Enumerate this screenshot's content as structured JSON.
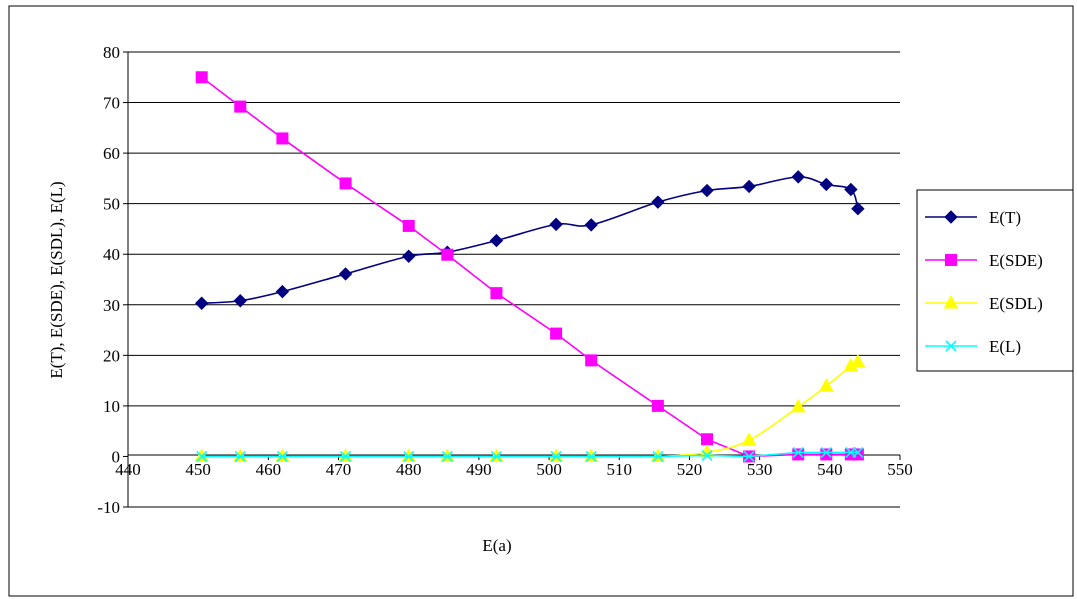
{
  "chart_data": {
    "type": "line",
    "title": "",
    "xlabel": "E(a)",
    "ylabel": "E(T), E(SDE), E(SDL), E(L)",
    "xlim": [
      440,
      550
    ],
    "ylim": [
      -10,
      80
    ],
    "xticks": [
      440,
      450,
      460,
      470,
      480,
      490,
      500,
      510,
      520,
      530,
      540,
      550
    ],
    "yticks": [
      -10,
      0,
      10,
      20,
      30,
      40,
      50,
      60,
      70,
      80
    ],
    "grid": "horizontal",
    "legend_position": "right",
    "series": [
      {
        "name": "E(T)",
        "color": "#000080",
        "marker": "diamond",
        "smooth": true,
        "x": [
          450.5,
          456,
          462,
          471,
          480,
          485.5,
          492.5,
          501,
          506,
          515.5,
          522.5,
          528.5,
          535.5,
          539.5,
          543,
          544
        ],
        "y": [
          30.3,
          30.8,
          32.6,
          36.1,
          39.6,
          40.4,
          42.7,
          45.9,
          45.8,
          50.3,
          52.6,
          53.4,
          55.3,
          53.8,
          52.8,
          49.0
        ]
      },
      {
        "name": "E(SDE)",
        "color": "#FF00FF",
        "marker": "square",
        "smooth": false,
        "x": [
          450.5,
          456,
          462,
          471,
          480,
          485.5,
          492.5,
          501,
          506,
          515.5,
          522.5,
          528.5,
          535.5,
          539.5,
          543,
          544
        ],
        "y": [
          75.0,
          69.2,
          62.9,
          54.0,
          45.6,
          39.9,
          32.3,
          24.3,
          19.0,
          10.0,
          3.4,
          0.0,
          0.4,
          0.4,
          0.4,
          0.4
        ]
      },
      {
        "name": "E(SDL)",
        "color": "#FFFF00",
        "marker": "triangle",
        "smooth": true,
        "x": [
          450.5,
          456,
          462,
          471,
          480,
          485.5,
          492.5,
          501,
          506,
          515.5,
          522.5,
          528.5,
          535.5,
          539.5,
          543,
          544
        ],
        "y": [
          0,
          0,
          0,
          0,
          0,
          0,
          0,
          0,
          0,
          0,
          0.8,
          3.2,
          9.8,
          13.9,
          17.9,
          18.7
        ]
      },
      {
        "name": "E(L)",
        "color": "#00FFFF",
        "marker": "x",
        "smooth": false,
        "x": [
          450.5,
          456,
          462,
          471,
          480,
          485.5,
          492.5,
          501,
          506,
          515.5,
          522.5,
          528.5,
          535.5,
          539.5,
          543,
          544
        ],
        "y": [
          0,
          0,
          0,
          0,
          0,
          0,
          0,
          0,
          0,
          0,
          0.2,
          0,
          0.8,
          0.8,
          0.8,
          0.8
        ]
      }
    ]
  }
}
